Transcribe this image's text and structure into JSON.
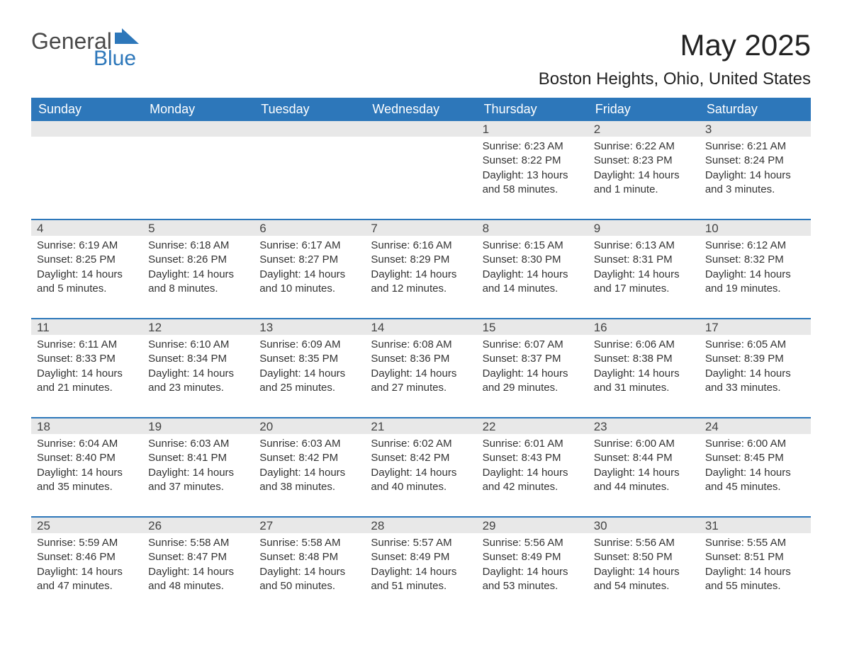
{
  "logo": {
    "part1": "General",
    "part2": "Blue"
  },
  "title": "May 2025",
  "location": "Boston Heights, Ohio, United States",
  "columns": [
    "Sunday",
    "Monday",
    "Tuesday",
    "Wednesday",
    "Thursday",
    "Friday",
    "Saturday"
  ],
  "colors": {
    "header_bg": "#2d77ba",
    "header_fg": "#ffffff",
    "daynum_bg": "#e8e8e8",
    "row_border": "#2d77ba",
    "text": "#333333",
    "logo_blue": "#2d77ba"
  },
  "weeks": [
    [
      {
        "day": "",
        "sunrise": "",
        "sunset": "",
        "daylight": ""
      },
      {
        "day": "",
        "sunrise": "",
        "sunset": "",
        "daylight": ""
      },
      {
        "day": "",
        "sunrise": "",
        "sunset": "",
        "daylight": ""
      },
      {
        "day": "",
        "sunrise": "",
        "sunset": "",
        "daylight": ""
      },
      {
        "day": "1",
        "sunrise": "Sunrise: 6:23 AM",
        "sunset": "Sunset: 8:22 PM",
        "daylight": "Daylight: 13 hours and 58 minutes."
      },
      {
        "day": "2",
        "sunrise": "Sunrise: 6:22 AM",
        "sunset": "Sunset: 8:23 PM",
        "daylight": "Daylight: 14 hours and 1 minute."
      },
      {
        "day": "3",
        "sunrise": "Sunrise: 6:21 AM",
        "sunset": "Sunset: 8:24 PM",
        "daylight": "Daylight: 14 hours and 3 minutes."
      }
    ],
    [
      {
        "day": "4",
        "sunrise": "Sunrise: 6:19 AM",
        "sunset": "Sunset: 8:25 PM",
        "daylight": "Daylight: 14 hours and 5 minutes."
      },
      {
        "day": "5",
        "sunrise": "Sunrise: 6:18 AM",
        "sunset": "Sunset: 8:26 PM",
        "daylight": "Daylight: 14 hours and 8 minutes."
      },
      {
        "day": "6",
        "sunrise": "Sunrise: 6:17 AM",
        "sunset": "Sunset: 8:27 PM",
        "daylight": "Daylight: 14 hours and 10 minutes."
      },
      {
        "day": "7",
        "sunrise": "Sunrise: 6:16 AM",
        "sunset": "Sunset: 8:29 PM",
        "daylight": "Daylight: 14 hours and 12 minutes."
      },
      {
        "day": "8",
        "sunrise": "Sunrise: 6:15 AM",
        "sunset": "Sunset: 8:30 PM",
        "daylight": "Daylight: 14 hours and 14 minutes."
      },
      {
        "day": "9",
        "sunrise": "Sunrise: 6:13 AM",
        "sunset": "Sunset: 8:31 PM",
        "daylight": "Daylight: 14 hours and 17 minutes."
      },
      {
        "day": "10",
        "sunrise": "Sunrise: 6:12 AM",
        "sunset": "Sunset: 8:32 PM",
        "daylight": "Daylight: 14 hours and 19 minutes."
      }
    ],
    [
      {
        "day": "11",
        "sunrise": "Sunrise: 6:11 AM",
        "sunset": "Sunset: 8:33 PM",
        "daylight": "Daylight: 14 hours and 21 minutes."
      },
      {
        "day": "12",
        "sunrise": "Sunrise: 6:10 AM",
        "sunset": "Sunset: 8:34 PM",
        "daylight": "Daylight: 14 hours and 23 minutes."
      },
      {
        "day": "13",
        "sunrise": "Sunrise: 6:09 AM",
        "sunset": "Sunset: 8:35 PM",
        "daylight": "Daylight: 14 hours and 25 minutes."
      },
      {
        "day": "14",
        "sunrise": "Sunrise: 6:08 AM",
        "sunset": "Sunset: 8:36 PM",
        "daylight": "Daylight: 14 hours and 27 minutes."
      },
      {
        "day": "15",
        "sunrise": "Sunrise: 6:07 AM",
        "sunset": "Sunset: 8:37 PM",
        "daylight": "Daylight: 14 hours and 29 minutes."
      },
      {
        "day": "16",
        "sunrise": "Sunrise: 6:06 AM",
        "sunset": "Sunset: 8:38 PM",
        "daylight": "Daylight: 14 hours and 31 minutes."
      },
      {
        "day": "17",
        "sunrise": "Sunrise: 6:05 AM",
        "sunset": "Sunset: 8:39 PM",
        "daylight": "Daylight: 14 hours and 33 minutes."
      }
    ],
    [
      {
        "day": "18",
        "sunrise": "Sunrise: 6:04 AM",
        "sunset": "Sunset: 8:40 PM",
        "daylight": "Daylight: 14 hours and 35 minutes."
      },
      {
        "day": "19",
        "sunrise": "Sunrise: 6:03 AM",
        "sunset": "Sunset: 8:41 PM",
        "daylight": "Daylight: 14 hours and 37 minutes."
      },
      {
        "day": "20",
        "sunrise": "Sunrise: 6:03 AM",
        "sunset": "Sunset: 8:42 PM",
        "daylight": "Daylight: 14 hours and 38 minutes."
      },
      {
        "day": "21",
        "sunrise": "Sunrise: 6:02 AM",
        "sunset": "Sunset: 8:42 PM",
        "daylight": "Daylight: 14 hours and 40 minutes."
      },
      {
        "day": "22",
        "sunrise": "Sunrise: 6:01 AM",
        "sunset": "Sunset: 8:43 PM",
        "daylight": "Daylight: 14 hours and 42 minutes."
      },
      {
        "day": "23",
        "sunrise": "Sunrise: 6:00 AM",
        "sunset": "Sunset: 8:44 PM",
        "daylight": "Daylight: 14 hours and 44 minutes."
      },
      {
        "day": "24",
        "sunrise": "Sunrise: 6:00 AM",
        "sunset": "Sunset: 8:45 PM",
        "daylight": "Daylight: 14 hours and 45 minutes."
      }
    ],
    [
      {
        "day": "25",
        "sunrise": "Sunrise: 5:59 AM",
        "sunset": "Sunset: 8:46 PM",
        "daylight": "Daylight: 14 hours and 47 minutes."
      },
      {
        "day": "26",
        "sunrise": "Sunrise: 5:58 AM",
        "sunset": "Sunset: 8:47 PM",
        "daylight": "Daylight: 14 hours and 48 minutes."
      },
      {
        "day": "27",
        "sunrise": "Sunrise: 5:58 AM",
        "sunset": "Sunset: 8:48 PM",
        "daylight": "Daylight: 14 hours and 50 minutes."
      },
      {
        "day": "28",
        "sunrise": "Sunrise: 5:57 AM",
        "sunset": "Sunset: 8:49 PM",
        "daylight": "Daylight: 14 hours and 51 minutes."
      },
      {
        "day": "29",
        "sunrise": "Sunrise: 5:56 AM",
        "sunset": "Sunset: 8:49 PM",
        "daylight": "Daylight: 14 hours and 53 minutes."
      },
      {
        "day": "30",
        "sunrise": "Sunrise: 5:56 AM",
        "sunset": "Sunset: 8:50 PM",
        "daylight": "Daylight: 14 hours and 54 minutes."
      },
      {
        "day": "31",
        "sunrise": "Sunrise: 5:55 AM",
        "sunset": "Sunset: 8:51 PM",
        "daylight": "Daylight: 14 hours and 55 minutes."
      }
    ]
  ]
}
